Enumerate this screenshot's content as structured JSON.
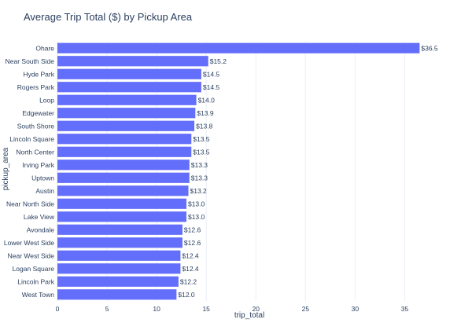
{
  "chart_data": {
    "type": "bar",
    "orientation": "horizontal",
    "title": "Average Trip Total ($) by Pickup Area",
    "xlabel": "trip_total",
    "ylabel": "pickup_area",
    "xlim": [
      0,
      37.5
    ],
    "xticks": [
      0,
      5,
      10,
      15,
      20,
      25,
      30,
      35
    ],
    "grid": true,
    "bar_color": "#636efa",
    "value_prefix": "$",
    "categories": [
      "Ohare",
      "Near South Side",
      "Hyde Park",
      "Rogers Park",
      "Loop",
      "Edgewater",
      "South Shore",
      "Lincoln Square",
      "North Center",
      "Irving Park",
      "Uptown",
      "Austin",
      "Near North Side",
      "Lake View",
      "Avondale",
      "Lower West Side",
      "Near West Side",
      "Logan Square",
      "Lincoln Park",
      "West Town"
    ],
    "values": [
      36.5,
      15.2,
      14.5,
      14.5,
      14.0,
      13.9,
      13.8,
      13.5,
      13.5,
      13.3,
      13.3,
      13.2,
      13.0,
      13.0,
      12.6,
      12.6,
      12.4,
      12.4,
      12.2,
      12.0
    ]
  }
}
